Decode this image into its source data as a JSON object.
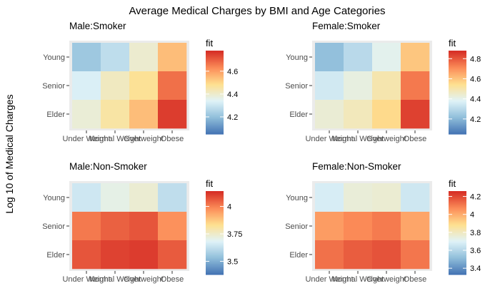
{
  "chart_data": {
    "type": "heatmap",
    "title": "Average Medical Charges by BMI and Age Categories",
    "ylabel": "Log 10 of Medical Charges",
    "x_categories": [
      "Under Weight",
      "Normal Weight",
      "Overweight",
      "Obese"
    ],
    "y_categories": [
      "Young",
      "Senior",
      "Elder"
    ],
    "panels": [
      {
        "title": "Male:Smoker",
        "legend_title": "fit",
        "scale_range": [
          4.05,
          4.78
        ],
        "legend_ticks": [
          4.2,
          4.4,
          4.6
        ],
        "values": [
          [
            4.22,
            4.28,
            4.4,
            4.55
          ],
          [
            4.33,
            4.42,
            4.48,
            4.68
          ],
          [
            4.39,
            4.46,
            4.55,
            4.76
          ]
        ]
      },
      {
        "title": "Female:Smoker",
        "legend_title": "fit",
        "scale_range": [
          4.05,
          4.88
        ],
        "legend_ticks": [
          4.2,
          4.4,
          4.6,
          4.8
        ],
        "values": [
          [
            4.22,
            4.3,
            4.4,
            4.6
          ],
          [
            4.35,
            4.42,
            4.5,
            4.75
          ],
          [
            4.44,
            4.48,
            4.56,
            4.85
          ]
        ]
      },
      {
        "title": "Male:Non-Smoker",
        "legend_title": "fit",
        "scale_range": [
          3.38,
          4.14
        ],
        "legend_ticks": [
          3.5,
          3.75,
          4.0
        ],
        "values": [
          [
            3.65,
            3.71,
            3.74,
            3.62
          ],
          [
            4.02,
            4.06,
            4.08,
            3.98
          ],
          [
            4.08,
            4.11,
            4.12,
            4.07
          ]
        ]
      },
      {
        "title": "Female:Non-Smoker",
        "legend_title": "fit",
        "scale_range": [
          3.33,
          4.26
        ],
        "legend_ticks": [
          3.4,
          3.6,
          3.8,
          4.0,
          4.2
        ],
        "values": [
          [
            3.68,
            3.76,
            3.77,
            3.66
          ],
          [
            4.04,
            4.08,
            4.11,
            4.02
          ],
          [
            4.13,
            4.17,
            4.19,
            4.12
          ]
        ]
      }
    ],
    "colors": {
      "low": "#4575b4",
      "mid_low": "#91bfdb",
      "mid": "#e0f3f8",
      "mid_high": "#fee090",
      "high_mid": "#fc8d59",
      "high": "#d73027",
      "panel_background": "#ebebeb"
    }
  }
}
